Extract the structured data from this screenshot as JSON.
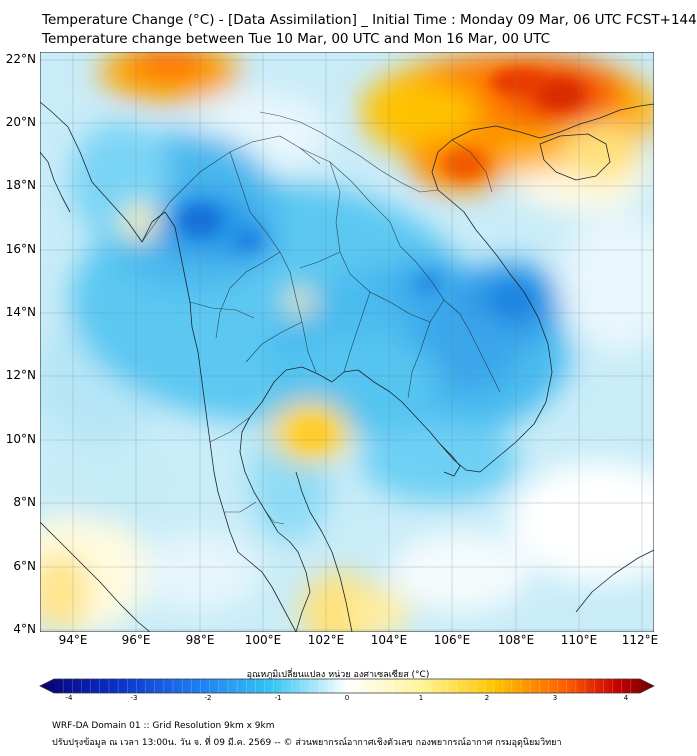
{
  "title_line1": "Temperature Change (°C) - [Data Assimilation] _ Initial Time : Monday 09 Mar, 06 UTC FCST+144",
  "title_line2": "Temperature change between Tue 10 Mar, 00 UTC and Mon 16 Mar, 00 UTC",
  "lat_labels": [
    "22°N",
    "20°N",
    "18°N",
    "16°N",
    "14°N",
    "12°N",
    "10°N",
    "8°N",
    "6°N",
    "4°N"
  ],
  "lon_labels": [
    "94°E",
    "96°E",
    "98°E",
    "100°E",
    "102°E",
    "104°E",
    "106°E",
    "108°E",
    "110°E",
    "112°E"
  ],
  "colorbar": {
    "title": "อุณหภูมิเปลี่ยนแปลง หน่วย องศาเซลเซียส (°C)",
    "ticks": [
      "-4",
      "-3",
      "-2",
      "-1",
      "0",
      "1",
      "2",
      "3",
      "4"
    ],
    "min": -4,
    "max": 4,
    "colors": [
      "#08006e",
      "#0a2ec8",
      "#1f7ff0",
      "#36c6f4",
      "#ffffff",
      "#fff59a",
      "#ffc400",
      "#ff5a00",
      "#c80000",
      "#6e0000"
    ]
  },
  "footer_line1": "WRF-DA Domain 01 :: Grid Resolution 9km x 9km",
  "footer_line2": "ปรับปรุงข้อมูล ณ เวลา 13:00น. วัน จ. ที่ 09 มี.ค. 2569 -- © ส่วนพยากรณ์อากาศเชิงตัวเลข กองพยากรณ์อากาศ กรมอุตุนิยมวิทยา"
}
